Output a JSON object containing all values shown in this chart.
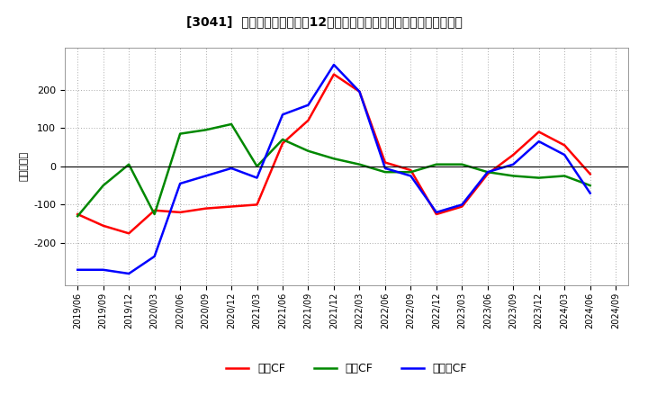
{
  "title": "[3041]  キャッシュフローの12か月移動合計の対前年同期増減額の推移",
  "ylabel": "（百万円）",
  "background_color": "#ffffff",
  "plot_bg_color": "#ffffff",
  "grid_color": "#aaaaaa",
  "x_labels": [
    "2019/06",
    "2019/09",
    "2019/12",
    "2020/03",
    "2020/06",
    "2020/09",
    "2020/12",
    "2021/03",
    "2021/06",
    "2021/09",
    "2021/12",
    "2022/03",
    "2022/06",
    "2022/09",
    "2022/12",
    "2023/03",
    "2023/06",
    "2023/09",
    "2023/12",
    "2024/03",
    "2024/06",
    "2024/09"
  ],
  "eigyo_cf": [
    -125,
    -155,
    -175,
    -115,
    -120,
    -110,
    -105,
    -100,
    60,
    120,
    240,
    195,
    10,
    -10,
    -125,
    -105,
    -20,
    30,
    90,
    55,
    -20,
    null
  ],
  "toshi_cf": [
    -130,
    -50,
    5,
    -125,
    85,
    95,
    110,
    0,
    70,
    40,
    20,
    5,
    -15,
    -15,
    5,
    5,
    -15,
    -25,
    -30,
    -25,
    -50,
    null
  ],
  "free_cf": [
    -270,
    -270,
    -280,
    -235,
    -45,
    -25,
    -5,
    -30,
    135,
    160,
    265,
    195,
    -5,
    -25,
    -120,
    -100,
    -15,
    5,
    65,
    30,
    -70,
    null
  ],
  "eigyo_color": "#ff0000",
  "toshi_color": "#008800",
  "free_color": "#0000ff",
  "legend_labels": [
    "営業CF",
    "投資CF",
    "フリーCF"
  ],
  "ylim": [
    -310,
    310
  ],
  "yticks": [
    -200,
    -100,
    0,
    100,
    200
  ]
}
